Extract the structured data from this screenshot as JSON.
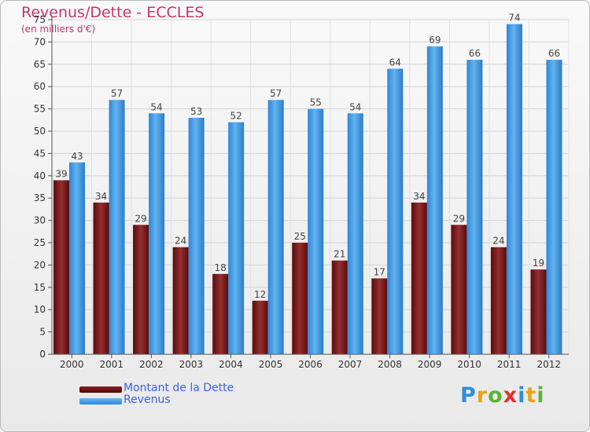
{
  "header": {
    "title": "Revenus/Dette - ECCLES",
    "subtitle": "(en milliers d'€)"
  },
  "legend": {
    "items": [
      {
        "label": "Montant de la Dette",
        "color": "#6b0f0f"
      },
      {
        "label": "Revenus",
        "color": "#3d9be6"
      }
    ]
  },
  "logo": {
    "text": "Proxiti",
    "letters": [
      {
        "ch": "P",
        "color": "#2f8fd8"
      },
      {
        "ch": "r",
        "color": "#e8a21c"
      },
      {
        "ch": "o",
        "color": "#5cb236"
      },
      {
        "ch": "x",
        "color": "#e2312c"
      },
      {
        "ch": "i",
        "color": "#2f8fd8"
      },
      {
        "ch": "t",
        "color": "#e8a21c"
      },
      {
        "ch": "i",
        "color": "#5cb236"
      }
    ]
  },
  "chart_data": {
    "type": "bar",
    "title": "Revenus/Dette - ECCLES",
    "ylabel": "(en milliers d'€)",
    "categories": [
      "2000",
      "2001",
      "2002",
      "2003",
      "2004",
      "2005",
      "2006",
      "2007",
      "2008",
      "2009",
      "2010",
      "2011",
      "2012"
    ],
    "series": [
      {
        "name": "Montant de la Dette",
        "values": [
          39,
          34,
          29,
          24,
          18,
          12,
          25,
          21,
          17,
          34,
          29,
          24,
          19
        ],
        "color": "#7a1a1a"
      },
      {
        "name": "Revenus",
        "values": [
          43,
          57,
          54,
          53,
          52,
          57,
          55,
          54,
          64,
          69,
          66,
          74,
          66
        ],
        "color": "#3d9be6"
      }
    ],
    "ylim": [
      0,
      75
    ],
    "yticks": [
      0,
      5,
      10,
      15,
      20,
      25,
      30,
      35,
      40,
      45,
      50,
      55,
      60,
      65,
      70,
      75
    ],
    "grid": true,
    "legend_position": "bottom-left"
  }
}
